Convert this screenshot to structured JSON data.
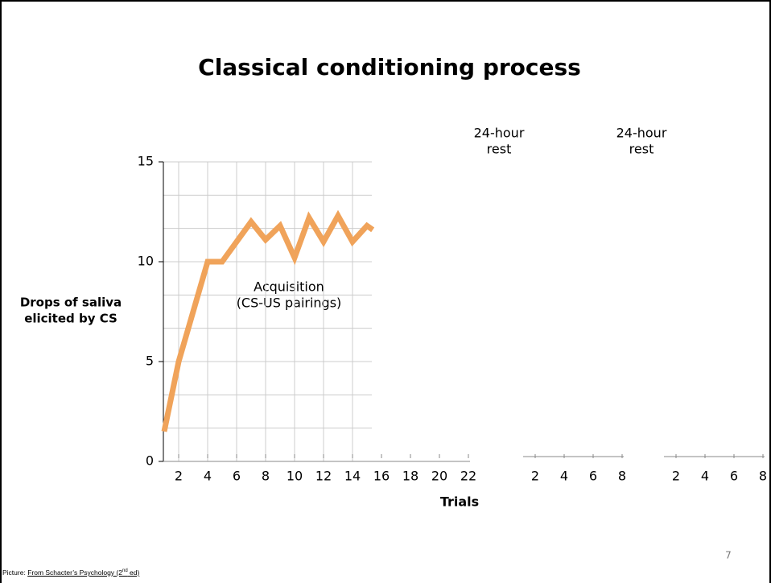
{
  "chart_data": {
    "type": "line",
    "title": "Classical conditioning process",
    "y_label": [
      "Drops of saliva",
      "elicited by CS"
    ],
    "x_label": "Trials",
    "annotations": [
      [
        "Acquisition",
        "(CS-US pairings)"
      ],
      [
        "24-hour",
        "rest"
      ],
      [
        "24-hour",
        "rest"
      ]
    ],
    "ylim": [
      0,
      15
    ],
    "yticks": [
      0,
      5,
      10,
      15
    ],
    "minor_yticks": [
      1.67,
      3.33,
      6.67,
      8.33,
      11.67,
      13.33
    ],
    "grid": true,
    "series": [
      {
        "color": "#f0a35a",
        "x": [
          1,
          2,
          3,
          4,
          5,
          6,
          7,
          8,
          9,
          10,
          11,
          12,
          13,
          14,
          15,
          15.4
        ],
        "values": [
          1.5,
          5,
          7.5,
          10,
          10,
          11,
          12,
          11.1,
          11.8,
          10.2,
          12.2,
          11,
          12.3,
          11,
          11.8,
          11.6
        ]
      }
    ],
    "panels": [
      {
        "xlim": [
          1,
          22
        ],
        "xticks": [
          2,
          4,
          6,
          8,
          10,
          12,
          14,
          16,
          18,
          20,
          22
        ]
      },
      {
        "xlim": [
          1,
          8
        ],
        "xticks": [
          2,
          4,
          6,
          8
        ]
      },
      {
        "xlim": [
          1,
          8
        ],
        "xticks": [
          2,
          4,
          6,
          8
        ]
      }
    ]
  },
  "page_number": "7",
  "footer": {
    "prefix": "Picture: ",
    "link": "From Schacter’s Psychology (2",
    "sup": "nd",
    "suffix": " ed)"
  }
}
